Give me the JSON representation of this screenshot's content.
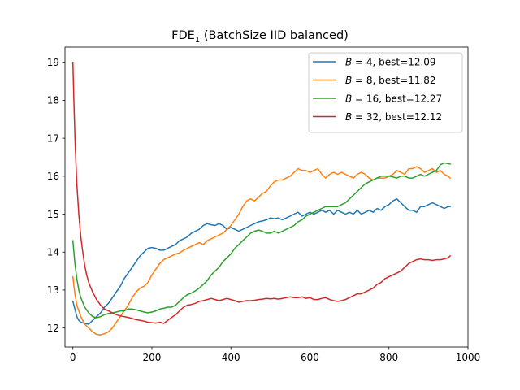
{
  "chart_data": {
    "type": "line",
    "title": "FDE",
    "title_subscript": "1",
    "title_suffix": " (BatchSize IID balanced)",
    "xlim": [
      -20,
      1000
    ],
    "ylim": [
      11.5,
      19.4
    ],
    "x_ticks": [
      0,
      200,
      400,
      600,
      800,
      1000
    ],
    "x_tick_labels": [
      "0",
      "200",
      "400",
      "600",
      "800",
      "1000"
    ],
    "y_ticks": [
      12,
      13,
      14,
      15,
      16,
      17,
      18,
      19
    ],
    "y_tick_labels": [
      "12",
      "13",
      "14",
      "15",
      "16",
      "17",
      "18",
      "19"
    ],
    "grid": false,
    "legend_position": "top-right",
    "series": [
      {
        "name_var": "B",
        "name_rest": " = 4, best=12.09",
        "color": "#1f77b4",
        "x": [
          0,
          5,
          10,
          15,
          20,
          30,
          40,
          50,
          60,
          70,
          80,
          90,
          100,
          110,
          120,
          130,
          140,
          150,
          160,
          170,
          180,
          190,
          200,
          210,
          220,
          230,
          240,
          250,
          260,
          270,
          280,
          290,
          300,
          310,
          320,
          330,
          340,
          350,
          360,
          370,
          380,
          390,
          400,
          410,
          420,
          430,
          440,
          450,
          460,
          470,
          480,
          490,
          500,
          510,
          520,
          530,
          540,
          550,
          560,
          570,
          580,
          590,
          600,
          610,
          620,
          630,
          640,
          650,
          660,
          670,
          680,
          690,
          700,
          710,
          720,
          730,
          740,
          750,
          760,
          770,
          780,
          790,
          800,
          810,
          820,
          830,
          840,
          850,
          860,
          870,
          880,
          890,
          900,
          910,
          920,
          930,
          940,
          950,
          955
        ],
        "y": [
          12.7,
          12.5,
          12.3,
          12.2,
          12.15,
          12.12,
          12.1,
          12.2,
          12.3,
          12.4,
          12.55,
          12.65,
          12.8,
          12.95,
          13.1,
          13.3,
          13.45,
          13.6,
          13.75,
          13.9,
          14.0,
          14.1,
          14.12,
          14.1,
          14.05,
          14.05,
          14.1,
          14.15,
          14.2,
          14.3,
          14.35,
          14.4,
          14.5,
          14.55,
          14.6,
          14.7,
          14.75,
          14.72,
          14.7,
          14.75,
          14.7,
          14.6,
          14.65,
          14.6,
          14.55,
          14.6,
          14.65,
          14.7,
          14.75,
          14.8,
          14.82,
          14.85,
          14.9,
          14.88,
          14.9,
          14.85,
          14.9,
          14.95,
          15.0,
          15.05,
          14.95,
          15.0,
          15.05,
          15.0,
          15.05,
          15.1,
          15.05,
          15.1,
          15.0,
          15.1,
          15.05,
          15.0,
          15.05,
          15.0,
          15.1,
          15.0,
          15.05,
          15.1,
          15.05,
          15.15,
          15.1,
          15.2,
          15.25,
          15.35,
          15.4,
          15.3,
          15.2,
          15.1,
          15.1,
          15.05,
          15.2,
          15.2,
          15.25,
          15.3,
          15.25,
          15.2,
          15.15,
          15.2,
          15.2
        ]
      },
      {
        "name_var": "B",
        "name_rest": " = 8, best=11.82",
        "color": "#ff7f0e",
        "x": [
          0,
          5,
          10,
          20,
          30,
          40,
          50,
          60,
          70,
          80,
          90,
          100,
          110,
          120,
          130,
          140,
          150,
          160,
          170,
          180,
          190,
          200,
          210,
          220,
          230,
          240,
          250,
          260,
          270,
          280,
          290,
          300,
          310,
          320,
          330,
          340,
          350,
          360,
          370,
          380,
          390,
          400,
          410,
          420,
          430,
          440,
          450,
          460,
          470,
          480,
          490,
          500,
          510,
          520,
          530,
          540,
          550,
          560,
          570,
          580,
          590,
          600,
          610,
          620,
          630,
          640,
          650,
          660,
          670,
          680,
          690,
          700,
          710,
          720,
          730,
          740,
          750,
          760,
          770,
          780,
          790,
          800,
          810,
          820,
          830,
          840,
          850,
          860,
          870,
          880,
          890,
          900,
          910,
          920,
          930,
          940,
          950,
          955
        ],
        "y": [
          13.35,
          12.9,
          12.6,
          12.3,
          12.1,
          12.0,
          11.9,
          11.83,
          11.82,
          11.85,
          11.9,
          12.0,
          12.15,
          12.3,
          12.45,
          12.6,
          12.8,
          12.95,
          13.05,
          13.1,
          13.2,
          13.4,
          13.55,
          13.7,
          13.8,
          13.85,
          13.9,
          13.95,
          13.98,
          14.05,
          14.1,
          14.15,
          14.2,
          14.25,
          14.2,
          14.3,
          14.35,
          14.4,
          14.45,
          14.5,
          14.6,
          14.7,
          14.85,
          15.0,
          15.2,
          15.35,
          15.4,
          15.35,
          15.45,
          15.55,
          15.6,
          15.75,
          15.85,
          15.9,
          15.9,
          15.95,
          16.0,
          16.1,
          16.2,
          16.15,
          16.15,
          16.1,
          16.15,
          16.2,
          16.05,
          15.95,
          16.05,
          16.1,
          16.05,
          16.1,
          16.05,
          16.0,
          15.95,
          16.05,
          16.1,
          16.05,
          15.95,
          15.9,
          15.95,
          15.95,
          15.95,
          16.0,
          16.05,
          16.15,
          16.1,
          16.05,
          16.2,
          16.2,
          16.25,
          16.2,
          16.1,
          16.15,
          16.2,
          16.1,
          16.15,
          16.05,
          16.0,
          15.95
        ]
      },
      {
        "name_var": "B",
        "name_rest": " = 16, best=12.27",
        "color": "#2ca02c",
        "x": [
          0,
          5,
          10,
          15,
          20,
          30,
          40,
          50,
          60,
          70,
          80,
          90,
          100,
          110,
          120,
          130,
          140,
          150,
          160,
          170,
          180,
          190,
          200,
          210,
          220,
          230,
          240,
          250,
          260,
          270,
          280,
          290,
          300,
          310,
          320,
          330,
          340,
          350,
          360,
          370,
          380,
          390,
          400,
          410,
          420,
          430,
          440,
          450,
          460,
          470,
          480,
          490,
          500,
          510,
          520,
          530,
          540,
          550,
          560,
          570,
          580,
          590,
          600,
          610,
          620,
          630,
          640,
          650,
          660,
          670,
          680,
          690,
          700,
          710,
          720,
          730,
          740,
          750,
          760,
          770,
          780,
          790,
          800,
          810,
          820,
          830,
          840,
          850,
          860,
          870,
          880,
          890,
          900,
          910,
          920,
          930,
          940,
          950,
          955
        ],
        "y": [
          14.3,
          13.7,
          13.3,
          13.0,
          12.8,
          12.55,
          12.4,
          12.3,
          12.27,
          12.3,
          12.35,
          12.38,
          12.4,
          12.42,
          12.45,
          12.45,
          12.5,
          12.5,
          12.48,
          12.45,
          12.42,
          12.4,
          12.42,
          12.45,
          12.5,
          12.52,
          12.55,
          12.55,
          12.6,
          12.7,
          12.8,
          12.88,
          12.92,
          12.98,
          13.05,
          13.15,
          13.25,
          13.4,
          13.5,
          13.6,
          13.75,
          13.85,
          13.95,
          14.1,
          14.2,
          14.3,
          14.4,
          14.5,
          14.55,
          14.58,
          14.55,
          14.5,
          14.5,
          14.55,
          14.5,
          14.55,
          14.6,
          14.65,
          14.7,
          14.8,
          14.85,
          14.95,
          15.0,
          15.05,
          15.1,
          15.15,
          15.2,
          15.2,
          15.2,
          15.2,
          15.25,
          15.3,
          15.4,
          15.5,
          15.6,
          15.7,
          15.8,
          15.85,
          15.9,
          15.95,
          16.0,
          16.0,
          16.0,
          15.98,
          15.95,
          16.0,
          16.0,
          15.95,
          15.95,
          16.0,
          16.05,
          16.0,
          16.05,
          16.1,
          16.15,
          16.3,
          16.35,
          16.33,
          16.32
        ]
      },
      {
        "name_var": "B",
        "name_rest": " = 32, best=12.12",
        "color": "#d62728",
        "x": [
          0,
          3,
          6,
          10,
          15,
          20,
          25,
          30,
          35,
          40,
          50,
          60,
          70,
          80,
          90,
          100,
          110,
          120,
          130,
          140,
          150,
          160,
          170,
          180,
          190,
          200,
          210,
          220,
          230,
          240,
          250,
          260,
          270,
          280,
          290,
          300,
          310,
          320,
          330,
          340,
          350,
          360,
          370,
          380,
          390,
          400,
          410,
          420,
          430,
          440,
          450,
          460,
          470,
          480,
          490,
          500,
          510,
          520,
          530,
          540,
          550,
          560,
          570,
          580,
          590,
          600,
          610,
          620,
          630,
          640,
          650,
          660,
          670,
          680,
          690,
          700,
          710,
          720,
          730,
          740,
          750,
          760,
          770,
          780,
          790,
          800,
          810,
          820,
          830,
          840,
          850,
          860,
          870,
          880,
          890,
          900,
          910,
          920,
          930,
          940,
          950,
          955
        ],
        "y": [
          19.0,
          17.8,
          16.8,
          15.8,
          15.0,
          14.4,
          14.0,
          13.65,
          13.4,
          13.2,
          12.95,
          12.75,
          12.6,
          12.5,
          12.45,
          12.4,
          12.35,
          12.32,
          12.3,
          12.28,
          12.25,
          12.22,
          12.2,
          12.18,
          12.15,
          12.14,
          12.13,
          12.15,
          12.12,
          12.2,
          12.28,
          12.35,
          12.45,
          12.55,
          12.6,
          12.62,
          12.65,
          12.7,
          12.72,
          12.75,
          12.78,
          12.75,
          12.72,
          12.75,
          12.78,
          12.75,
          12.72,
          12.68,
          12.7,
          12.72,
          12.72,
          12.73,
          12.75,
          12.76,
          12.78,
          12.77,
          12.78,
          12.76,
          12.78,
          12.8,
          12.82,
          12.8,
          12.8,
          12.82,
          12.78,
          12.8,
          12.75,
          12.75,
          12.78,
          12.8,
          12.75,
          12.72,
          12.7,
          12.72,
          12.75,
          12.8,
          12.85,
          12.9,
          12.9,
          12.95,
          13.0,
          13.05,
          13.15,
          13.2,
          13.3,
          13.35,
          13.4,
          13.45,
          13.5,
          13.6,
          13.7,
          13.75,
          13.8,
          13.82,
          13.8,
          13.8,
          13.78,
          13.8,
          13.8,
          13.82,
          13.85,
          13.9
        ]
      }
    ]
  }
}
